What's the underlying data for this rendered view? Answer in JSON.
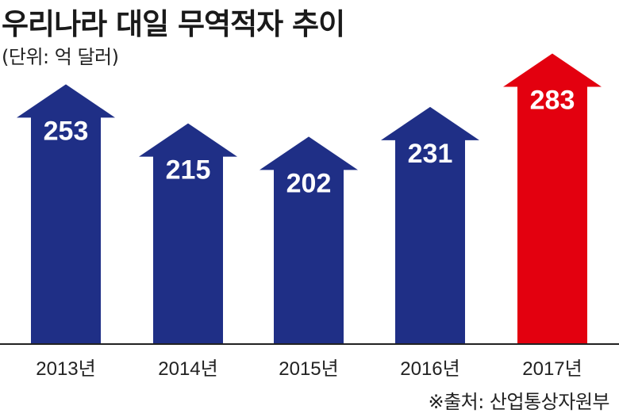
{
  "chart_data": {
    "type": "bar",
    "title": "우리나라 대일 무역적자 추이",
    "subtitle": "(단위: 억 달러)",
    "categories": [
      "2013년",
      "2014년",
      "2015년",
      "2016년",
      "2017년"
    ],
    "values": [
      253,
      215,
      202,
      231,
      283
    ],
    "colors": [
      "#1f2f86",
      "#1f2f86",
      "#1f2f86",
      "#1f2f86",
      "#e3000f"
    ],
    "source": "※출처: 산업통상자원부",
    "xlabel": "",
    "ylabel": "",
    "grid": false
  }
}
